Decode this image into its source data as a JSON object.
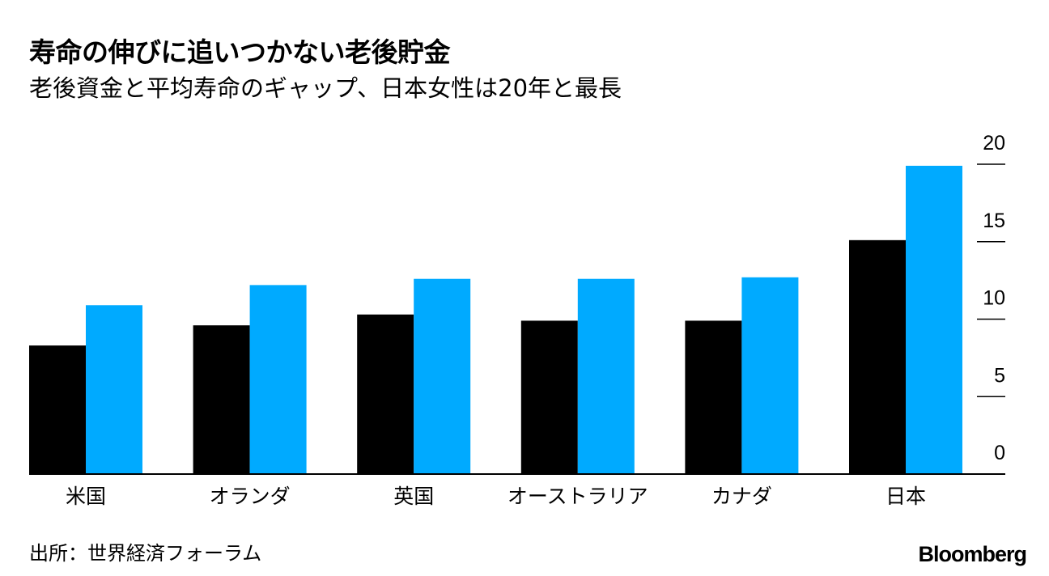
{
  "title": "寿命の伸びに追いつかない老後貯金",
  "subtitle": "老後資金と平均寿命のギャップ、日本女性は20年と最長",
  "source": "出所：世界経済フォーラム",
  "brand": "Bloomberg",
  "colors": {
    "series_1": "#000000",
    "series_2": "#00aaff",
    "axis": "#000000"
  },
  "chart_data": {
    "type": "bar",
    "categories": [
      "米国",
      "オランダ",
      "英国",
      "オーストラリア",
      "カナダ",
      "日本"
    ],
    "series": [
      {
        "values": [
          8.3,
          9.6,
          10.3,
          9.9,
          9.9,
          15.1
        ]
      },
      {
        "values": [
          10.9,
          12.2,
          12.6,
          12.6,
          12.7,
          19.9
        ]
      }
    ],
    "yticks": [
      0,
      5,
      10,
      15,
      20
    ],
    "ylim": [
      0,
      20
    ],
    "y_axis_position": "right",
    "grid": false,
    "legend": "none"
  }
}
